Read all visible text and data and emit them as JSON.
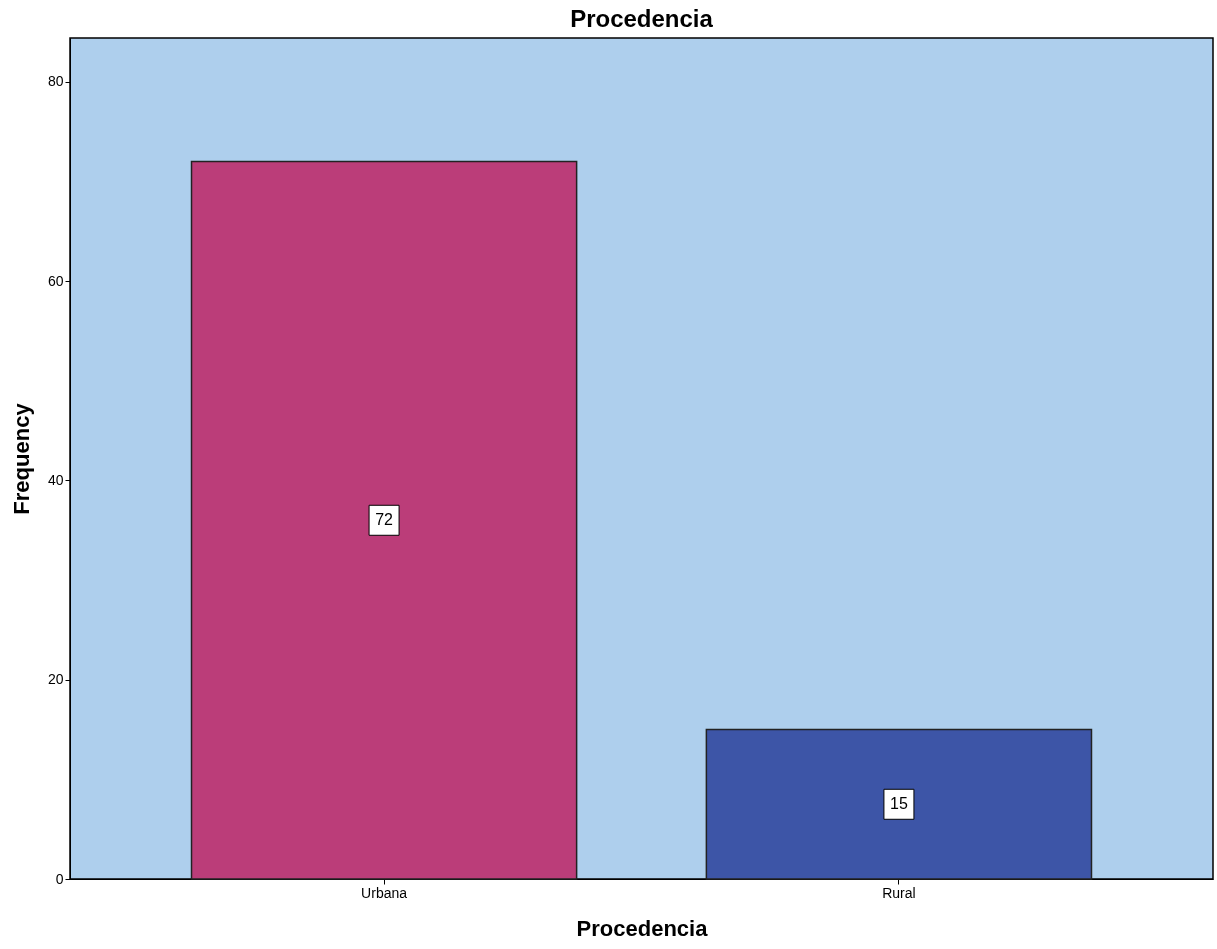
{
  "chart_data": {
    "type": "bar",
    "title": "Procedencia",
    "xlabel": "Procedencia",
    "ylabel": "Frequency",
    "categories": [
      "Urbana",
      "Rural"
    ],
    "values": [
      72,
      15
    ],
    "colors": [
      "#bb3d79",
      "#3d55a7"
    ],
    "ylim": [
      0,
      84.4
    ],
    "yticks": [
      0,
      20,
      40,
      60,
      80
    ],
    "data_labels": true,
    "grid": false
  }
}
